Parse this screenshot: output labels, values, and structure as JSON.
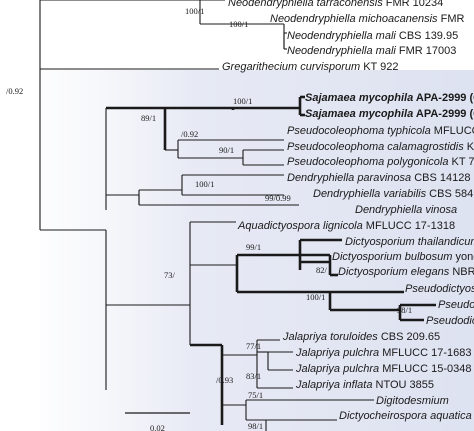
{
  "taxa": [
    {
      "id": "t0",
      "genus": "Neodendryphiella",
      "epithet": "tarraconensis",
      "strain": "FMR 10234",
      "bold": false
    },
    {
      "id": "t1",
      "genus": "Neodendryphiella",
      "epithet": "michoacanensis",
      "strain": "FMR",
      "bold": false
    },
    {
      "id": "t2",
      "genus": "Neodendryphiella",
      "epithet": "mali",
      "strain": "CBS 139.95",
      "bold": false
    },
    {
      "id": "t3",
      "genus": "Neodendryphiella",
      "epithet": "mali",
      "strain": "FMR 17003",
      "bold": false
    },
    {
      "id": "t4",
      "genus": "Gregarithecium",
      "epithet": "curvisporum",
      "strain": "KT 922",
      "bold": false
    },
    {
      "id": "t5",
      "genus": "Sajamaea",
      "epithet": "mycophila",
      "strain": "APA-2999 (Co",
      "bold": true
    },
    {
      "id": "t6",
      "genus": "Sajamaea",
      "epithet": "mycophila",
      "strain": "APA-2999 (Con",
      "bold": true
    },
    {
      "id": "t7",
      "genus": "Pseudocoleophoma",
      "epithet": "typhicola",
      "strain": "MFLUCC 16-",
      "bold": false
    },
    {
      "id": "t8",
      "genus": "Pseudocoleophoma",
      "epithet": "calamagrostidis",
      "strain": "KT 328",
      "bold": false
    },
    {
      "id": "t9",
      "genus": "Pseudocoleophoma",
      "epithet": "polygonicola",
      "strain": "KT 731",
      "bold": false
    },
    {
      "id": "t10",
      "genus": "Dendryphiella",
      "epithet": "paravinosa",
      "strain": "CBS 14128",
      "bold": false
    },
    {
      "id": "t11",
      "genus": "Dendryphiella",
      "epithet": "variabilis",
      "strain": "CBS 584.96",
      "bold": false
    },
    {
      "id": "t12",
      "genus": "Dendryphiella",
      "epithet": "vinosa",
      "strain": "",
      "bold": false
    },
    {
      "id": "t13",
      "genus": "Aquadictyospora",
      "epithet": "lignicola",
      "strain": "MFLUCC 17-1318",
      "bold": false
    },
    {
      "id": "t14",
      "genus": "Dictyosporium",
      "epithet": "thailandicum",
      "strain": "MF",
      "bold": false
    },
    {
      "id": "t15",
      "genus": "Dictyosporium",
      "epithet": "bulbosum",
      "strain": "yone 22",
      "bold": false
    },
    {
      "id": "t16",
      "genus": "Dictyosporium",
      "epithet": "elegans",
      "strain": "NBRC 3",
      "bold": false
    },
    {
      "id": "t17",
      "genus": "Pseudodictyos",
      "epithet": "",
      "strain": "",
      "bold": false
    },
    {
      "id": "t18",
      "genus": "Pseudo",
      "epithet": "",
      "strain": "",
      "bold": false
    },
    {
      "id": "t19",
      "genus": "Pseudodic",
      "epithet": "",
      "strain": "",
      "bold": false
    },
    {
      "id": "t20",
      "genus": "Jalapriya",
      "epithet": "toruloides",
      "strain": "CBS 209.65",
      "bold": false
    },
    {
      "id": "t21",
      "genus": "Jalapriya",
      "epithet": "pulchra",
      "strain": "MFLUCC 17-1683",
      "bold": false
    },
    {
      "id": "t22",
      "genus": "Jalapriya",
      "epithet": "pulchra",
      "strain": "MFLUCC 15-0348",
      "bold": false
    },
    {
      "id": "t23",
      "genus": "Jalapriya",
      "epithet": "inflata",
      "strain": "NTOU 3855",
      "bold": false
    },
    {
      "id": "t24",
      "genus": "Digitodesmium",
      "epithet": "",
      "strain": "",
      "bold": false
    },
    {
      "id": "t25",
      "genus": "Dictyocheirospora",
      "epithet": "aquatica",
      "strain": "KUM",
      "bold": false
    },
    {
      "id": "t26",
      "genus": "",
      "epithet": "",
      "strain": "",
      "bold": false
    }
  ],
  "support_labels": [
    "100/1",
    "100/1",
    "/0.92",
    "100/1",
    "89/1",
    "/0.92",
    "90/1",
    "100/1",
    "99/0.99",
    "99/1",
    "82/",
    "100/1",
    "98/1",
    "73/",
    "77/1",
    "83/1",
    "/0.93",
    "75/1",
    "98/1"
  ],
  "scale_bar_label": "0.02",
  "colors": {
    "highlight": "#d7dcee",
    "branch": "#1a1a1a",
    "text": "#1a1a1a"
  }
}
